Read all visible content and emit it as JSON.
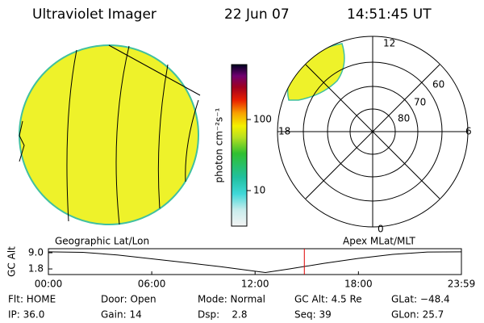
{
  "header": {
    "title": "Ultraviolet Imager",
    "date": "22 Jun 07",
    "time": "14:51:45 UT"
  },
  "left_panel": {
    "caption": "Geographic Lat/Lon"
  },
  "colorbar": {
    "label": "photon cm⁻²s⁻¹",
    "ticks": [
      "100",
      "10"
    ]
  },
  "polar_panel": {
    "caption": "Apex MLat/MLT",
    "mlt_labels": [
      "12",
      "6",
      "0",
      "18"
    ],
    "mlat_labels": [
      "60",
      "70",
      "80"
    ]
  },
  "chart_data": {
    "type": "line",
    "y_label": "GC Alt",
    "color": "#000000",
    "x": [
      0,
      2,
      4,
      6,
      8,
      10,
      12,
      12.6,
      14,
      16,
      18,
      20,
      22,
      23.98
    ],
    "values": [
      9.4,
      9.2,
      8.0,
      6.3,
      4.6,
      2.8,
      0.8,
      0.2,
      1.8,
      4.3,
      6.5,
      8.3,
      9.3,
      9.4
    ],
    "xlim": [
      0,
      23.98
    ],
    "xticks": [
      {
        "value": 0,
        "label": "00:00"
      },
      {
        "value": 6,
        "label": "06:00"
      },
      {
        "value": 12,
        "label": "12:00"
      },
      {
        "value": 18,
        "label": "18:00"
      },
      {
        "value": 23.98,
        "label": "23:59"
      }
    ],
    "ylim": [
      -0.7,
      10.8
    ],
    "yticks": [
      {
        "value": 9,
        "label": "9.0"
      },
      {
        "value": 1.8,
        "label": "1.8"
      }
    ],
    "marker_x": 14.86,
    "marker_color": "#e00000"
  },
  "info": {
    "rows": [
      [
        "Flt: HOME",
        "Door: Open",
        "Mode: Normal",
        "GC Alt: 4.5 Re",
        "GLat: −48.4"
      ],
      [
        "IP: 36.0",
        "Gain: 14",
        "Dsp:    2.8",
        "Seq: 39",
        "GLon: 25.7"
      ]
    ]
  }
}
